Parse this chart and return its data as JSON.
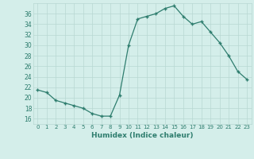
{
  "x": [
    0,
    1,
    2,
    3,
    4,
    5,
    6,
    7,
    8,
    9,
    10,
    11,
    12,
    13,
    14,
    15,
    16,
    17,
    18,
    19,
    20,
    21,
    22,
    23
  ],
  "y": [
    21.5,
    21.0,
    19.5,
    19.0,
    18.5,
    18.0,
    17.0,
    16.5,
    16.5,
    20.5,
    30.0,
    35.0,
    35.5,
    36.0,
    37.0,
    37.5,
    35.5,
    34.0,
    34.5,
    32.5,
    30.5,
    28.0,
    25.0,
    23.5
  ],
  "xlabel": "Humidex (Indice chaleur)",
  "ylabel": "",
  "xlim": [
    -0.5,
    23.5
  ],
  "ylim": [
    15.0,
    38.0
  ],
  "yticks": [
    16,
    18,
    20,
    22,
    24,
    26,
    28,
    30,
    32,
    34,
    36
  ],
  "xticks": [
    0,
    1,
    2,
    3,
    4,
    5,
    6,
    7,
    8,
    9,
    10,
    11,
    12,
    13,
    14,
    15,
    16,
    17,
    18,
    19,
    20,
    21,
    22,
    23
  ],
  "line_color": "#2e7d6e",
  "marker_color": "#2e7d6e",
  "bg_color": "#d4eeea",
  "grid_color": "#b8d8d2",
  "label_color": "#2e7d6e",
  "tick_color": "#2e7d6e"
}
